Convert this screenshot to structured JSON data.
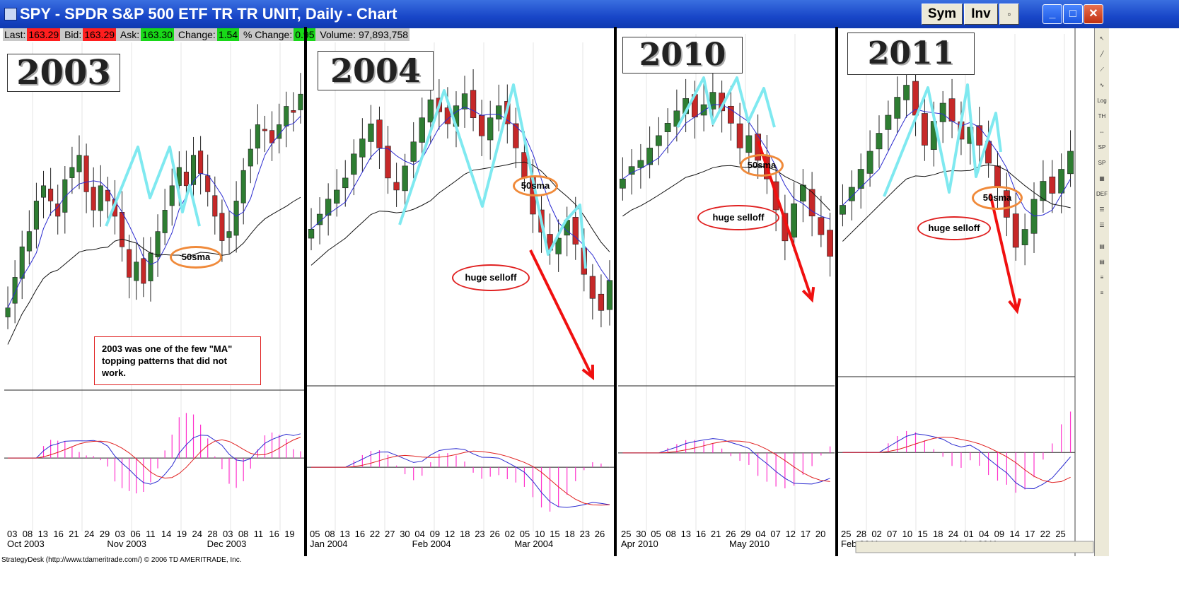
{
  "window": {
    "title": "SPY - SPDR S&P 500 ETF TR TR UNIT, Daily - Chart",
    "buttons": {
      "sym": "Sym",
      "inv": "Inv",
      "minimize": "_",
      "maximize": "□",
      "close": "✕"
    }
  },
  "quote": {
    "last_label": "Last:",
    "last": "163.29",
    "bid_label": "Bid:",
    "bid": "163.29",
    "ask_label": "Ask:",
    "ask": "163.30",
    "change_label": "Change:",
    "change": "1.54",
    "pct_label": "% Change:",
    "pct": "0.95",
    "volume_label": "Volume:",
    "volume": "97,893,758"
  },
  "status_text": "StrategyDesk (http://www.tdameritrade.com/) © 2006 TD AMERITRADE, Inc.",
  "colors": {
    "up": "#2e7d32",
    "down": "#c62828",
    "sma_fast": "#2a2ad0",
    "sma_slow": "#111111",
    "ma_pattern": "#7fe9f0",
    "arrow": "#f01010",
    "macd": "#2a2ad0",
    "signal": "#e02020",
    "hist": "#ff33cc"
  },
  "chart_data": [
    {
      "type": "candlestick",
      "year_label": "2003",
      "x_ticks": [
        "03",
        "08",
        "13",
        "16",
        "21",
        "24",
        "29",
        "03",
        "06",
        "11",
        "14",
        "19",
        "24",
        "28",
        "03",
        "08",
        "11",
        "16",
        "19"
      ],
      "month_labels": [
        "Oct 2003",
        "Nov 2003",
        "Dec 2003"
      ],
      "closes": [
        0.2,
        0.3,
        0.4,
        0.45,
        0.55,
        0.6,
        0.55,
        0.5,
        0.62,
        0.66,
        0.7,
        0.58,
        0.52,
        0.6,
        0.55,
        0.5,
        0.4,
        0.3,
        0.35,
        0.28,
        0.38,
        0.45,
        0.52,
        0.6,
        0.66,
        0.6,
        0.7,
        0.64,
        0.58,
        0.5,
        0.42,
        0.45,
        0.55,
        0.65,
        0.72,
        0.8,
        0.78,
        0.74,
        0.8,
        0.86,
        0.84,
        0.9
      ],
      "annotations": {
        "sma": "50sma",
        "note": "2003 was one of the few \"MA\" topping patterns that did not work."
      }
    },
    {
      "type": "candlestick",
      "year_label": "2004",
      "x_ticks": [
        "05",
        "08",
        "13",
        "16",
        "22",
        "27",
        "30",
        "04",
        "09",
        "12",
        "18",
        "23",
        "26",
        "02",
        "05",
        "10",
        "15",
        "18",
        "23",
        "26"
      ],
      "month_labels": [
        "Jan 2004",
        "Feb 2004",
        "Mar 2004"
      ],
      "closes": [
        0.45,
        0.5,
        0.55,
        0.58,
        0.62,
        0.7,
        0.75,
        0.8,
        0.72,
        0.62,
        0.58,
        0.66,
        0.74,
        0.82,
        0.88,
        0.84,
        0.8,
        0.86,
        0.9,
        0.82,
        0.76,
        0.82,
        0.86,
        0.8,
        0.72,
        0.62,
        0.5,
        0.44,
        0.38,
        0.42,
        0.48,
        0.4,
        0.3,
        0.22,
        0.18,
        0.28
      ],
      "annotations": {
        "sma": "50sma",
        "selloff": "huge selloff"
      }
    },
    {
      "type": "candlestick",
      "year_label": "2010",
      "x_ticks": [
        "25",
        "30",
        "05",
        "08",
        "13",
        "16",
        "21",
        "26",
        "29",
        "04",
        "07",
        "12",
        "17",
        "20"
      ],
      "month_labels": [
        "Apr 2010",
        "May 2010"
      ],
      "closes": [
        0.6,
        0.64,
        0.66,
        0.7,
        0.74,
        0.78,
        0.82,
        0.86,
        0.8,
        0.84,
        0.88,
        0.82,
        0.78,
        0.7,
        0.74,
        0.66,
        0.6,
        0.5,
        0.4,
        0.52,
        0.58,
        0.48,
        0.42,
        0.35
      ],
      "annotations": {
        "sma": "50sma",
        "selloff": "huge selloff"
      }
    },
    {
      "type": "candlestick",
      "year_label": "2011",
      "x_ticks": [
        "25",
        "28",
        "02",
        "07",
        "10",
        "15",
        "18",
        "24",
        "01",
        "04",
        "09",
        "14",
        "17",
        "22",
        "25"
      ],
      "month_labels": [
        "Feb 2011",
        "Mar 2011"
      ],
      "closes": [
        0.5,
        0.56,
        0.62,
        0.68,
        0.74,
        0.8,
        0.86,
        0.9,
        0.8,
        0.7,
        0.78,
        0.84,
        0.78,
        0.72,
        0.76,
        0.7,
        0.64,
        0.56,
        0.46,
        0.36,
        0.42,
        0.52,
        0.58,
        0.54,
        0.62,
        0.68
      ],
      "annotations": {
        "sma": "50sma",
        "selloff": "huge selloff"
      }
    }
  ]
}
